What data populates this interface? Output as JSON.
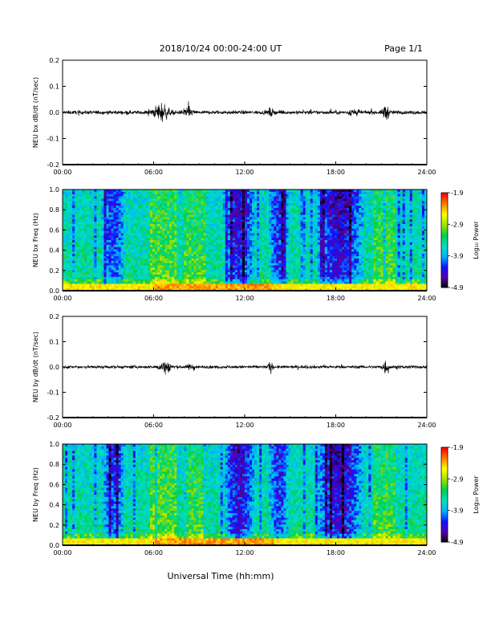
{
  "header": {
    "title": "2018/10/24  00:00-24:00 UT",
    "page": "Page 1/1"
  },
  "xaxis": {
    "label": "Universal Time (hh:mm)",
    "ticks": [
      "00:00",
      "06:00",
      "12:00",
      "18:00",
      "24:00"
    ],
    "range_hours": [
      0,
      24
    ]
  },
  "colorbar": {
    "label": "Log₁₀ Power",
    "ticks": [
      "-1.9",
      "-2.9",
      "-3.9",
      "-4.9"
    ],
    "range": [
      -4.9,
      -1.9
    ],
    "colors": [
      "#000000",
      "#5a00a8",
      "#1010ff",
      "#00b4ff",
      "#00e0c0",
      "#00d050",
      "#a0e000",
      "#ffff00",
      "#ff8000",
      "#ff0000"
    ]
  },
  "chart_data": [
    {
      "type": "line",
      "ylabel": "NEU bx dB/dt (nT/sec)",
      "ylim": [
        -0.2,
        0.2
      ],
      "yticks": [
        "0.2",
        "0.1",
        "0.0",
        "-0.1",
        "-0.2"
      ],
      "baseline_noise": 0.012,
      "bursts": [
        {
          "center_h": 6.5,
          "width_h": 0.9,
          "amplitude": 0.06
        },
        {
          "center_h": 8.3,
          "width_h": 0.6,
          "amplitude": 0.03
        },
        {
          "center_h": 13.7,
          "width_h": 0.3,
          "amplitude": 0.025
        },
        {
          "center_h": 19.2,
          "width_h": 0.5,
          "amplitude": 0.03
        },
        {
          "center_h": 21.3,
          "width_h": 0.4,
          "amplitude": 0.05
        }
      ]
    },
    {
      "type": "heatmap",
      "ylabel": "NEU bx Freq (Hz)",
      "ylim": [
        0.0,
        1.0
      ],
      "yticks": [
        "1.0",
        "0.8",
        "0.6",
        "0.4",
        "0.2",
        "0.0"
      ],
      "zlim": [
        -4.9,
        -1.9
      ]
    },
    {
      "type": "line",
      "ylabel": "NEU by dB/dt (nT/sec)",
      "ylim": [
        -0.2,
        0.2
      ],
      "yticks": [
        "0.2",
        "0.1",
        "0.0",
        "-0.1",
        "-0.2"
      ],
      "baseline_noise": 0.01,
      "bursts": [
        {
          "center_h": 6.8,
          "width_h": 0.8,
          "amplitude": 0.045
        },
        {
          "center_h": 8.5,
          "width_h": 0.5,
          "amplitude": 0.02
        },
        {
          "center_h": 13.7,
          "width_h": 0.3,
          "amplitude": 0.03
        },
        {
          "center_h": 21.3,
          "width_h": 0.5,
          "amplitude": 0.045
        }
      ]
    },
    {
      "type": "heatmap",
      "ylabel": "NEU by Freq (Hz)",
      "ylim": [
        0.0,
        1.0
      ],
      "yticks": [
        "1.0",
        "0.8",
        "0.6",
        "0.4",
        "0.2",
        "0.0"
      ],
      "zlim": [
        -4.9,
        -1.9
      ]
    }
  ]
}
